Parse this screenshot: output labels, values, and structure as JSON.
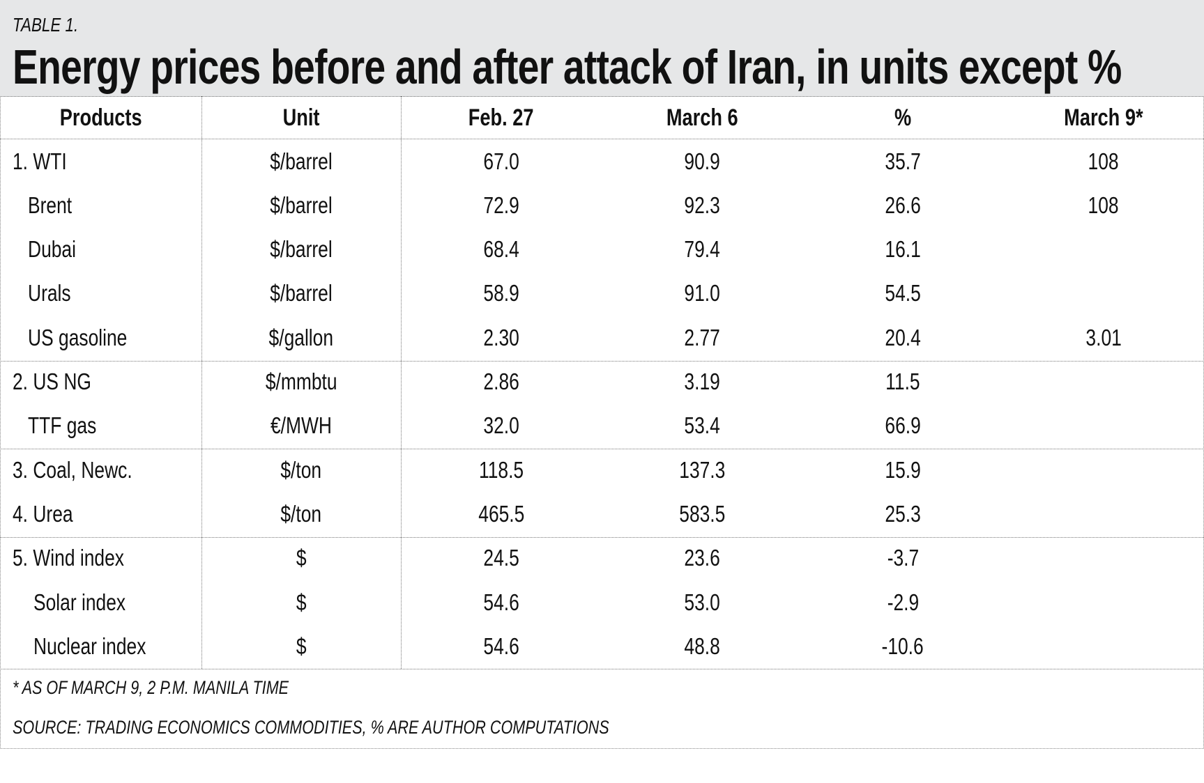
{
  "table_label": "TABLE 1.",
  "title": "Energy prices before and after attack of Iran, in units except %",
  "columns": [
    "Products",
    "Unit",
    "Feb. 27",
    "March 6",
    "%",
    "March 9*"
  ],
  "rows": [
    {
      "product": "1. WTI",
      "unit": "$/barrel",
      "feb27": "67.0",
      "mar6": "90.9",
      "pct": "35.7",
      "mar9": "108"
    },
    {
      "product": "Brent",
      "unit": "$/barrel",
      "feb27": "72.9",
      "mar6": "92.3",
      "pct": "26.6",
      "mar9": "108"
    },
    {
      "product": "Dubai",
      "unit": "$/barrel",
      "feb27": "68.4",
      "mar6": "79.4",
      "pct": "16.1",
      "mar9": ""
    },
    {
      "product": "Urals",
      "unit": "$/barrel",
      "feb27": "58.9",
      "mar6": "91.0",
      "pct": "54.5",
      "mar9": ""
    },
    {
      "product": "US gasoline",
      "unit": "$/gallon",
      "feb27": "2.30",
      "mar6": "2.77",
      "pct": "20.4",
      "mar9": "3.01"
    },
    {
      "product": "2. US NG",
      "unit": "$/mmbtu",
      "feb27": "2.86",
      "mar6": "3.19",
      "pct": "11.5",
      "mar9": ""
    },
    {
      "product": "TTF gas",
      "unit": "€/MWH",
      "feb27": "32.0",
      "mar6": "53.4",
      "pct": "66.9",
      "mar9": ""
    },
    {
      "product": "3. Coal, Newc.",
      "unit": "$/ton",
      "feb27": "118.5",
      "mar6": "137.3",
      "pct": "15.9",
      "mar9": ""
    },
    {
      "product": "4. Urea",
      "unit": "$/ton",
      "feb27": "465.5",
      "mar6": "583.5",
      "pct": "25.3",
      "mar9": ""
    },
    {
      "product": "5. Wind index",
      "unit": "$",
      "feb27": "24.5",
      "mar6": "23.6",
      "pct": "-3.7",
      "mar9": ""
    },
    {
      "product": "Solar index",
      "unit": "$",
      "feb27": "54.6",
      "mar6": "53.0",
      "pct": "-2.9",
      "mar9": ""
    },
    {
      "product": "Nuclear index",
      "unit": "$",
      "feb27": "54.6",
      "mar6": "48.8",
      "pct": "-10.6",
      "mar9": ""
    }
  ],
  "footnote": "* AS OF MARCH 9, 2 P.M. MANILA TIME",
  "source": "SOURCE: TRADING ECONOMICS COMMODITIES, % ARE AUTHOR COMPUTATIONS"
}
